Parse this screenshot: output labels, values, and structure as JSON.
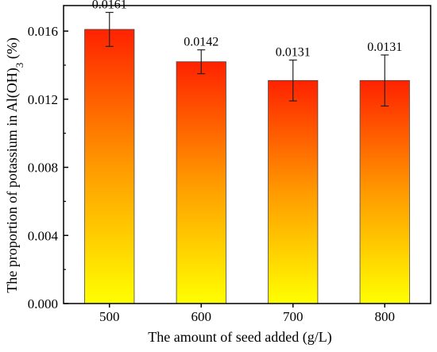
{
  "chart_data": {
    "type": "bar",
    "categories": [
      "500",
      "600",
      "700",
      "800"
    ],
    "values": [
      0.0161,
      0.0142,
      0.0131,
      0.0131
    ],
    "error_bars": [
      [
        0.0151,
        0.0171
      ],
      [
        0.0135,
        0.0149
      ],
      [
        0.0119,
        0.0143
      ],
      [
        0.0116,
        0.0146
      ]
    ],
    "data_labels": [
      "0.0161",
      "0.0142",
      "0.0131",
      "0.0131"
    ],
    "xlabel": "The amount of seed added (g/L)",
    "ylabel": "The proportion of potassium in Al(OH)3 (%)",
    "ylabel_parts": {
      "before": "The proportion of potassium in Al(OH)",
      "subscript": "3",
      "after": " (%)"
    },
    "ylim": [
      0,
      0.0175
    ],
    "yticks": [
      "0.000",
      "0.004",
      "0.008",
      "0.012",
      "0.016"
    ],
    "grid": false,
    "bar_gradient": {
      "top": "#ff2200",
      "middle": "#ff9a00",
      "bottom": "#ffff00"
    }
  }
}
